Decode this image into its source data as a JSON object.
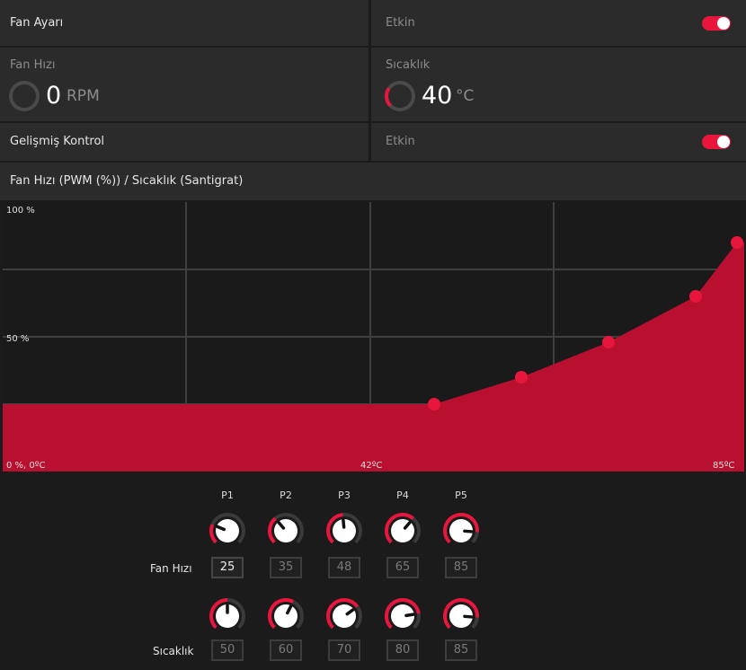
{
  "fan_setting": {
    "label": "Fan Ayarı",
    "status_label": "Etkin",
    "enabled": true
  },
  "fan_speed": {
    "label": "Fan Hızı",
    "value": "0",
    "unit": "RPM",
    "gauge_fraction": 0
  },
  "temperature": {
    "label": "Sıcaklık",
    "value": "40",
    "unit": "°C",
    "gauge_fraction": 0.3
  },
  "advanced_control": {
    "label": "Gelişmiş Kontrol",
    "status_label": "Etkin",
    "enabled": true
  },
  "curve_title": "Fan Hızı (PWM (%)) / Sıcaklık (Santigrat)",
  "chart_data": {
    "type": "area",
    "x_label_left": "0 %, 0ºC",
    "x_label_mid": "42ºC",
    "x_label_right": "85ºC",
    "y_label_top": "100 %",
    "y_label_mid": "50 %",
    "xlim": [
      0,
      85
    ],
    "ylim": [
      0,
      100
    ],
    "grid": true,
    "color": "#b8102e",
    "point_color": "#e8163c",
    "points": [
      {
        "name": "P1",
        "x": 50,
        "y": 25
      },
      {
        "name": "P2",
        "x": 60,
        "y": 35
      },
      {
        "name": "P3",
        "x": 70,
        "y": 48
      },
      {
        "name": "P4",
        "x": 80,
        "y": 65
      },
      {
        "name": "P5",
        "x": 85,
        "y": 85
      }
    ]
  },
  "point_labels": [
    "P1",
    "P2",
    "P3",
    "P4",
    "P5"
  ],
  "speed_row": {
    "label": "Fan Hızı",
    "values": [
      "25",
      "35",
      "48",
      "65",
      "85"
    ]
  },
  "temp_row": {
    "label": "Sıcaklık",
    "values": [
      "50",
      "60",
      "70",
      "80",
      "85"
    ]
  },
  "colors": {
    "accent": "#e8163c",
    "panel": "#2b2b2b",
    "background": "#1b1b1b"
  }
}
